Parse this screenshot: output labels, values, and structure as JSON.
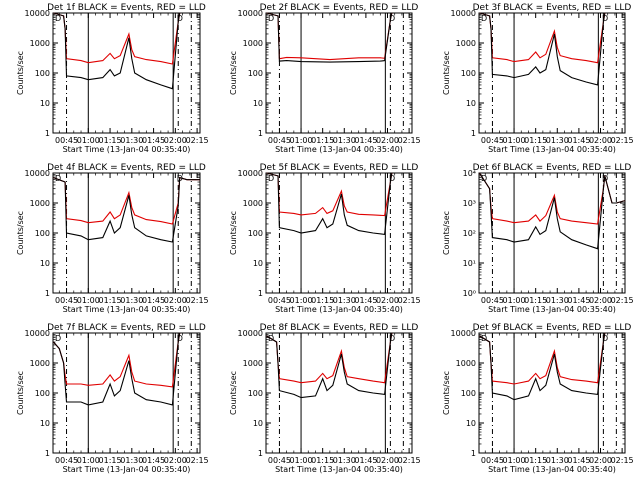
{
  "page": {
    "title": "",
    "colors": {
      "events": "#000000",
      "lld": "#e00000",
      "axes": "#000000"
    }
  },
  "shared": {
    "ylabel": "Counts/sec",
    "xlabel": "Start Time (13-Jan-04 00:35:40)",
    "x_tick_labels": [
      "00:45",
      "01:00",
      "01:15",
      "01:30",
      "01:45",
      "02:00",
      "02:15"
    ],
    "x_tick_minutes": [
      45,
      60,
      75,
      90,
      105,
      120,
      135
    ],
    "x_range_minutes": [
      35.67,
      137
    ],
    "y_tick_values": [
      1,
      10,
      100,
      1000,
      10000
    ],
    "y_tick_labels_decimal": [
      "1",
      "10",
      "100",
      "1000",
      "10000"
    ],
    "y_tick_labels_power": [
      "10⁰",
      "10¹",
      "10²",
      "10³",
      "10⁴"
    ],
    "event_marker_minutes": [
      60,
      118.5
    ],
    "dashed_marker_minutes": [
      45,
      122,
      131
    ],
    "corner_tag_left": "D",
    "corner_tag_right": "D"
  },
  "chart_data": [
    {
      "type": "line",
      "title": "Det 1f BLACK = Events, RED = LLD",
      "yscale": "log",
      "ylim": [
        1,
        10000
      ],
      "series": [
        {
          "name": "Events",
          "color": "#000000",
          "x": [
            36,
            43,
            44,
            45,
            55,
            60,
            70,
            75,
            78,
            82,
            88,
            90,
            92,
            100,
            110,
            118,
            122,
            123
          ],
          "y": [
            10000,
            8000,
            3000,
            80,
            70,
            60,
            70,
            130,
            80,
            100,
            1500,
            300,
            100,
            60,
            40,
            30,
            5000,
            10000
          ]
        },
        {
          "name": "LLD",
          "color": "#e00000",
          "x": [
            36,
            43,
            44,
            45,
            55,
            60,
            70,
            75,
            78,
            82,
            88,
            90,
            92,
            100,
            110,
            118,
            122,
            123
          ],
          "y": [
            10000,
            8000,
            3000,
            300,
            260,
            220,
            260,
            450,
            300,
            380,
            2000,
            600,
            350,
            280,
            240,
            200,
            5000,
            10000
          ]
        }
      ]
    },
    {
      "type": "line",
      "title": "Det 2f BLACK = Events, RED = LLD",
      "yscale": "log",
      "ylim": [
        1,
        10000
      ],
      "series": [
        {
          "name": "Events",
          "color": "#000000",
          "x": [
            36,
            44,
            45,
            50,
            60,
            80,
            100,
            115,
            118,
            122,
            123
          ],
          "y": [
            10000,
            8000,
            250,
            260,
            240,
            230,
            240,
            250,
            260,
            6000,
            10000
          ]
        },
        {
          "name": "LLD",
          "color": "#e00000",
          "x": [
            36,
            44,
            45,
            50,
            60,
            80,
            100,
            115,
            118,
            122,
            123
          ],
          "y": [
            10000,
            8000,
            300,
            330,
            320,
            280,
            320,
            320,
            310,
            6000,
            10000
          ]
        }
      ]
    },
    {
      "type": "line",
      "title": "Det 3f BLACK = Events, RED = LLD",
      "yscale": "log",
      "ylim": [
        1,
        10000
      ],
      "series": [
        {
          "name": "Events",
          "color": "#000000",
          "x": [
            36,
            43,
            44,
            45,
            55,
            60,
            70,
            75,
            78,
            82,
            88,
            90,
            92,
            100,
            110,
            118,
            122,
            123
          ],
          "y": [
            10000,
            8000,
            3000,
            90,
            80,
            70,
            90,
            160,
            100,
            130,
            2000,
            350,
            120,
            70,
            50,
            40,
            5000,
            10000
          ]
        },
        {
          "name": "LLD",
          "color": "#e00000",
          "x": [
            36,
            43,
            44,
            45,
            55,
            60,
            70,
            75,
            78,
            82,
            88,
            90,
            92,
            100,
            110,
            118,
            122,
            123
          ],
          "y": [
            10000,
            8000,
            3000,
            320,
            280,
            240,
            280,
            500,
            320,
            420,
            2500,
            700,
            380,
            300,
            260,
            220,
            5000,
            10000
          ]
        }
      ]
    },
    {
      "type": "line",
      "title": "Det 4f BLACK = Events, RED = LLD",
      "yscale": "log",
      "ylim": [
        1,
        10000
      ],
      "series": [
        {
          "name": "Events",
          "color": "#000000",
          "x": [
            36,
            44,
            45,
            55,
            60,
            70,
            75,
            78,
            82,
            88,
            90,
            92,
            100,
            110,
            118,
            122,
            123,
            128,
            137
          ],
          "y": [
            7000,
            5000,
            100,
            80,
            60,
            70,
            250,
            100,
            150,
            1800,
            400,
            150,
            80,
            60,
            50,
            800,
            7000,
            6000,
            6000
          ]
        },
        {
          "name": "LLD",
          "color": "#e00000",
          "x": [
            36,
            44,
            45,
            55,
            60,
            70,
            75,
            78,
            82,
            88,
            90,
            92,
            100,
            110,
            118,
            122,
            123,
            128,
            137
          ],
          "y": [
            7000,
            5000,
            300,
            260,
            220,
            250,
            500,
            300,
            400,
            2200,
            700,
            400,
            280,
            240,
            200,
            1000,
            7000,
            6000,
            6000
          ]
        }
      ]
    },
    {
      "type": "line",
      "title": "Det 5f BLACK = Events, RED = LLD",
      "yscale": "log",
      "ylim": [
        1,
        10000
      ],
      "series": [
        {
          "name": "Events",
          "color": "#000000",
          "x": [
            36,
            44,
            45,
            55,
            60,
            70,
            75,
            78,
            82,
            88,
            90,
            92,
            100,
            110,
            118,
            122,
            123
          ],
          "y": [
            10000,
            8000,
            150,
            120,
            100,
            120,
            300,
            150,
            200,
            2000,
            400,
            180,
            120,
            100,
            90,
            5000,
            10000
          ]
        },
        {
          "name": "LLD",
          "color": "#e00000",
          "x": [
            36,
            44,
            45,
            55,
            60,
            70,
            75,
            78,
            82,
            88,
            90,
            92,
            100,
            110,
            118,
            122,
            123
          ],
          "y": [
            10000,
            8000,
            500,
            450,
            400,
            450,
            700,
            450,
            550,
            2500,
            800,
            500,
            420,
            400,
            380,
            5000,
            10000
          ]
        }
      ]
    },
    {
      "type": "line",
      "title": "Det 6f BLACK = Events, RED = LLD",
      "yscale": "log",
      "ylim": [
        1,
        10000
      ],
      "series": [
        {
          "name": "Events",
          "color": "#000000",
          "x": [
            36,
            43,
            44,
            45,
            55,
            60,
            70,
            75,
            78,
            82,
            88,
            90,
            92,
            100,
            110,
            118,
            122,
            123,
            128,
            131,
            137
          ],
          "y": [
            10000,
            3000,
            500,
            70,
            60,
            50,
            60,
            160,
            90,
            120,
            1500,
            300,
            110,
            60,
            40,
            30,
            3000,
            8000,
            1000,
            1000,
            1200
          ]
        },
        {
          "name": "LLD",
          "color": "#e00000",
          "x": [
            36,
            43,
            44,
            45,
            55,
            60,
            70,
            75,
            78,
            82,
            88,
            90,
            92,
            100,
            110,
            118,
            122,
            123,
            128,
            131,
            137
          ],
          "y": [
            10000,
            3000,
            700,
            300,
            250,
            220,
            250,
            400,
            250,
            380,
            1800,
            500,
            300,
            250,
            220,
            200,
            3000,
            8000,
            1000,
            1000,
            1200
          ]
        }
      ]
    },
    {
      "type": "line",
      "title": "Det 7f BLACK = Events, RED = LLD",
      "yscale": "log",
      "ylim": [
        1,
        10000
      ],
      "series": [
        {
          "name": "Events",
          "color": "#000000",
          "x": [
            36,
            40,
            43,
            44,
            45,
            55,
            60,
            70,
            75,
            78,
            82,
            88,
            90,
            92,
            100,
            110,
            118,
            122,
            123
          ],
          "y": [
            5000,
            3000,
            1000,
            200,
            50,
            50,
            40,
            50,
            200,
            80,
            120,
            1200,
            300,
            100,
            60,
            50,
            40,
            5000,
            10000
          ]
        },
        {
          "name": "LLD",
          "color": "#e00000",
          "x": [
            36,
            40,
            43,
            44,
            45,
            55,
            60,
            70,
            75,
            78,
            82,
            88,
            90,
            92,
            100,
            110,
            118,
            122,
            123
          ],
          "y": [
            5000,
            3000,
            1000,
            400,
            200,
            200,
            180,
            200,
            400,
            250,
            350,
            1800,
            500,
            250,
            200,
            180,
            160,
            5000,
            10000
          ]
        }
      ]
    },
    {
      "type": "line",
      "title": "Det 8f BLACK = Events, RED = LLD",
      "yscale": "log",
      "ylim": [
        1,
        10000
      ],
      "series": [
        {
          "name": "Events",
          "color": "#000000",
          "x": [
            36,
            43,
            44,
            45,
            55,
            60,
            70,
            75,
            78,
            82,
            88,
            90,
            92,
            100,
            110,
            118,
            122,
            123
          ],
          "y": [
            8000,
            5000,
            1000,
            120,
            90,
            70,
            80,
            300,
            120,
            180,
            2000,
            500,
            200,
            120,
            100,
            90,
            5000,
            10000
          ]
        },
        {
          "name": "LLD",
          "color": "#e00000",
          "x": [
            36,
            43,
            44,
            45,
            55,
            60,
            70,
            75,
            78,
            82,
            88,
            90,
            92,
            100,
            110,
            118,
            122,
            123
          ],
          "y": [
            8000,
            5000,
            1000,
            300,
            250,
            220,
            250,
            450,
            300,
            380,
            2500,
            700,
            350,
            300,
            250,
            220,
            5000,
            10000
          ]
        }
      ]
    },
    {
      "type": "line",
      "title": "Det 9f BLACK = Events, RED = LLD",
      "yscale": "log",
      "ylim": [
        1,
        10000
      ],
      "series": [
        {
          "name": "Events",
          "color": "#000000",
          "x": [
            36,
            43,
            44,
            45,
            55,
            60,
            70,
            75,
            78,
            82,
            88,
            90,
            92,
            100,
            110,
            118,
            122,
            123
          ],
          "y": [
            8000,
            5000,
            1000,
            100,
            80,
            60,
            80,
            300,
            120,
            180,
            2000,
            500,
            200,
            120,
            100,
            90,
            5000,
            10000
          ]
        },
        {
          "name": "LLD",
          "color": "#e00000",
          "x": [
            36,
            43,
            44,
            45,
            55,
            60,
            70,
            75,
            78,
            82,
            88,
            90,
            92,
            100,
            110,
            118,
            122,
            123
          ],
          "y": [
            8000,
            5000,
            1000,
            250,
            220,
            200,
            250,
            450,
            300,
            380,
            2500,
            700,
            350,
            280,
            250,
            220,
            5000,
            10000
          ]
        }
      ]
    }
  ]
}
